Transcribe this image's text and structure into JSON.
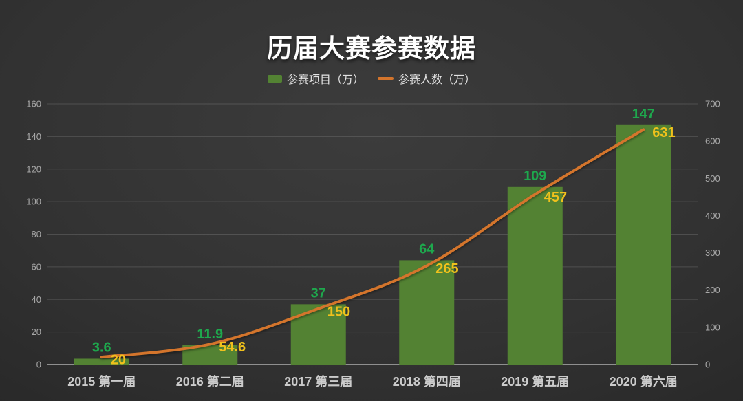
{
  "chart_data": {
    "type": "bar",
    "title": "历届大赛参赛数据",
    "categories": [
      "2015 第一届",
      "2016 第二届",
      "2017 第三届",
      "2018 第四届",
      "2019 第五届",
      "2020 第六届"
    ],
    "series": [
      {
        "name": "参赛项目（万）",
        "type": "bar",
        "axis": "left",
        "values": [
          3.6,
          11.9,
          37,
          64,
          109,
          147
        ],
        "color": "#538233",
        "label_color": "#1ea84d"
      },
      {
        "name": "参赛人数（万）",
        "type": "line",
        "axis": "right",
        "values": [
          20,
          54.6,
          150,
          265,
          457,
          631
        ],
        "color": "#d4752c",
        "label_color": "#f0c11c"
      }
    ],
    "left_axis": {
      "min": 0,
      "max": 160,
      "ticks": [
        0,
        20,
        40,
        60,
        80,
        100,
        120,
        140,
        160
      ]
    },
    "right_axis": {
      "min": 0,
      "max": 700,
      "ticks": [
        0,
        100,
        200,
        300,
        400,
        500,
        600,
        700
      ]
    },
    "grid": true,
    "legend_position": "top"
  },
  "colors": {
    "title_text": "#ffffff",
    "legend_text": "#e2e2e2",
    "grid_line": "rgba(255,255,255,0.14)",
    "axis_line": "#8f8f8f",
    "tick_label": "#a8a8a8",
    "category_label": "#cbcbcb"
  }
}
